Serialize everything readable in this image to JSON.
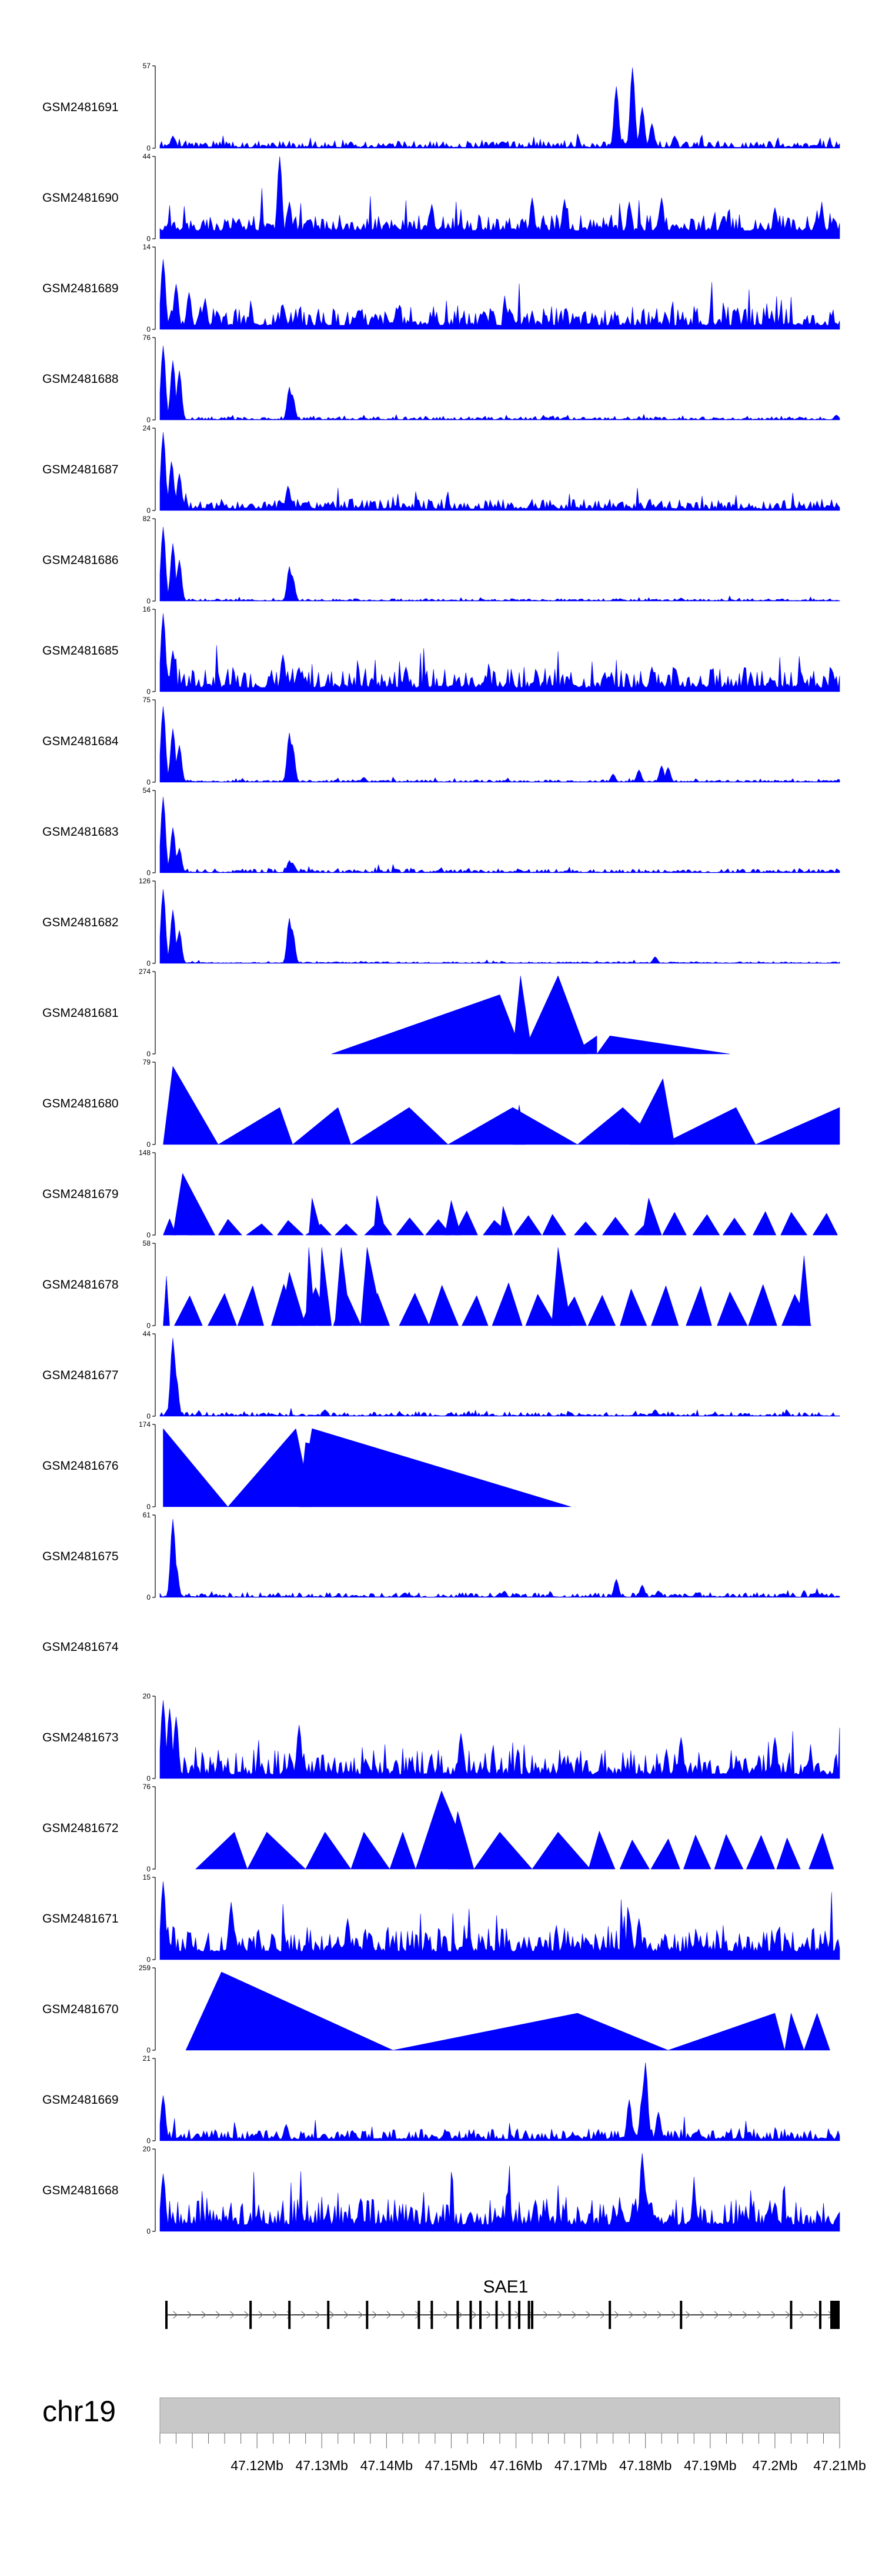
{
  "chart_data": {
    "type": "genome-tracks",
    "colors": {
      "signal": "#0000ff",
      "axis": "#000000",
      "ideogram": "#c8c8c8",
      "label": "#000000"
    },
    "chrom": "chr19",
    "xrange_mb": [
      47.105,
      47.21
    ],
    "xticks": [
      "47.12Mb",
      "47.13Mb",
      "47.14Mb",
      "47.15Mb",
      "47.16Mb",
      "47.17Mb",
      "47.18Mb",
      "47.19Mb",
      "47.2Mb",
      "47.21Mb"
    ],
    "xtick_values": [
      47.12,
      47.13,
      47.14,
      47.15,
      47.16,
      47.17,
      47.18,
      47.19,
      47.2,
      47.21
    ],
    "gene": {
      "name": "SAE1",
      "strand": "+",
      "start_mb": 47.106,
      "end_mb": 47.21,
      "exons_mb": [
        47.106,
        47.119,
        47.125,
        47.131,
        47.137,
        47.145,
        47.147,
        47.151,
        47.153,
        47.1545,
        47.157,
        47.159,
        47.1605,
        47.162,
        47.1625,
        47.1745,
        47.1855,
        47.2025,
        47.207,
        47.2095,
        47.21
      ]
    },
    "series": [
      {
        "name": "GSM2481691",
        "ymax": "57",
        "ymin": "0",
        "style": "peaks",
        "seed": 1,
        "bg_lo": 0.01,
        "bg_hi": 0.09,
        "hump": 0,
        "spikes": [
          [
            47.107,
            0.15
          ],
          [
            47.1755,
            0.75
          ],
          [
            47.178,
            0.98
          ],
          [
            47.1795,
            0.5
          ],
          [
            47.181,
            0.3
          ],
          [
            47.1845,
            0.15
          ],
          [
            47.1345,
            0.08
          ],
          [
            47.1405,
            0.06
          ]
        ]
      },
      {
        "name": "GSM2481690",
        "ymax": "44",
        "ymin": "0",
        "style": "peaks",
        "seed": 2,
        "bg_lo": 0.1,
        "bg_hi": 0.3,
        "hump": 0,
        "spacing": 0.0022,
        "spikes": [
          [
            47.1235,
            1.0
          ],
          [
            47.125,
            0.45
          ],
          [
            47.147,
            0.42
          ],
          [
            47.1625,
            0.5
          ],
          [
            47.1675,
            0.48
          ],
          [
            47.1775,
            0.45
          ],
          [
            47.1825,
            0.5
          ],
          [
            47.2,
            0.38
          ]
        ]
      },
      {
        "name": "GSM2481689",
        "ymax": "14",
        "ymin": "0",
        "style": "peaks",
        "seed": 3,
        "bg_lo": 0.05,
        "bg_hi": 0.28,
        "hump": 0,
        "spikes": [
          [
            47.1055,
            0.85
          ],
          [
            47.1075,
            0.55
          ],
          [
            47.1095,
            0.45
          ],
          [
            47.124,
            0.3
          ],
          [
            47.159,
            0.25
          ]
        ]
      },
      {
        "name": "GSM2481688",
        "ymax": "76",
        "ymin": "0",
        "style": "peaks",
        "seed": 4,
        "bg_lo": 0.005,
        "bg_hi": 0.04,
        "hump": 0,
        "spikes": [
          [
            47.1055,
            0.9
          ],
          [
            47.107,
            0.72
          ],
          [
            47.108,
            0.6
          ],
          [
            47.125,
            0.4
          ],
          [
            47.1255,
            0.3
          ],
          [
            47.2095,
            0.06
          ]
        ]
      },
      {
        "name": "GSM2481687",
        "ymax": "24",
        "ymin": "0",
        "style": "peaks",
        "seed": 5,
        "bg_lo": 0.02,
        "bg_hi": 0.14,
        "hump": 0,
        "spikes": [
          [
            47.1055,
            0.95
          ],
          [
            47.1068,
            0.6
          ],
          [
            47.108,
            0.45
          ],
          [
            47.1248,
            0.3
          ]
        ]
      },
      {
        "name": "GSM2481686",
        "ymax": "82",
        "ymin": "0",
        "style": "peaks",
        "seed": 6,
        "bg_lo": 0.005,
        "bg_hi": 0.03,
        "hump": 0,
        "spikes": [
          [
            47.1055,
            0.9
          ],
          [
            47.107,
            0.7
          ],
          [
            47.108,
            0.5
          ],
          [
            47.125,
            0.42
          ],
          [
            47.1255,
            0.3
          ]
        ]
      },
      {
        "name": "GSM2481685",
        "ymax": "16",
        "ymin": "0",
        "style": "peaks",
        "seed": 7,
        "bg_lo": 0.05,
        "bg_hi": 0.3,
        "hump": 0,
        "spikes": [
          [
            47.1055,
            0.95
          ],
          [
            47.107,
            0.5
          ],
          [
            47.124,
            0.45
          ],
          [
            47.143,
            0.3
          ],
          [
            47.181,
            0.3
          ]
        ]
      },
      {
        "name": "GSM2481684",
        "ymax": "75",
        "ymin": "0",
        "style": "peaks",
        "seed": 8,
        "bg_lo": 0.005,
        "bg_hi": 0.03,
        "hump": 0,
        "spikes": [
          [
            47.1055,
            0.92
          ],
          [
            47.107,
            0.65
          ],
          [
            47.108,
            0.45
          ],
          [
            47.125,
            0.6
          ],
          [
            47.1255,
            0.45
          ],
          [
            47.175,
            0.1
          ],
          [
            47.179,
            0.15
          ],
          [
            47.1825,
            0.2
          ],
          [
            47.1835,
            0.18
          ],
          [
            47.1365,
            0.06
          ]
        ]
      },
      {
        "name": "GSM2481683",
        "ymax": "54",
        "ymin": "0",
        "style": "peaks",
        "seed": 9,
        "bg_lo": 0.005,
        "bg_hi": 0.05,
        "hump": 0,
        "spikes": [
          [
            47.1055,
            0.92
          ],
          [
            47.107,
            0.55
          ],
          [
            47.108,
            0.3
          ],
          [
            47.125,
            0.15
          ],
          [
            47.1255,
            0.12
          ]
        ]
      },
      {
        "name": "GSM2481682",
        "ymax": "126",
        "ymin": "0",
        "style": "peaks",
        "seed": 10,
        "bg_lo": 0.005,
        "bg_hi": 0.02,
        "hump": 0,
        "spikes": [
          [
            47.1055,
            0.9
          ],
          [
            47.107,
            0.65
          ],
          [
            47.108,
            0.4
          ],
          [
            47.125,
            0.55
          ],
          [
            47.1255,
            0.4
          ],
          [
            47.1815,
            0.08
          ]
        ]
      },
      {
        "name": "GSM2481681",
        "ymax": "274",
        "ymin": "0",
        "style": "triangles",
        "tri": [
          [
            47.1315,
            47.1575,
            47.161,
            0.72
          ],
          [
            47.1595,
            47.1607,
            47.1625,
            0.95
          ],
          [
            47.161,
            47.1665,
            47.171,
            0.95
          ],
          [
            47.1625,
            47.164,
            47.1685,
            0.22
          ],
          [
            47.1685,
            47.1725,
            47.1725,
            0.22
          ],
          [
            47.1725,
            47.1745,
            47.193,
            0.22
          ]
        ]
      },
      {
        "name": "GSM2481680",
        "ymax": "79",
        "ymin": "0",
        "style": "triangles",
        "tri": [
          [
            47.1055,
            47.107,
            47.114,
            0.95
          ],
          [
            47.114,
            47.1235,
            47.1255,
            0.45
          ],
          [
            47.1255,
            47.1325,
            47.1345,
            0.45
          ],
          [
            47.1345,
            47.1435,
            47.1495,
            0.45
          ],
          [
            47.1495,
            47.1595,
            47.1695,
            0.45
          ],
          [
            47.1595,
            47.1605,
            47.1615,
            0.48
          ],
          [
            47.1695,
            47.1765,
            47.1825,
            0.45
          ],
          [
            47.1775,
            47.1827,
            47.1845,
            0.8
          ],
          [
            47.1825,
            47.194,
            47.197,
            0.45
          ],
          [
            47.197,
            47.21,
            47.21,
            0.45
          ]
        ]
      },
      {
        "name": "GSM2481679",
        "ymax": "148",
        "ymin": "0",
        "style": "triangles",
        "seed": 13,
        "tri_random": [
          47.109,
          47.21,
          0.12,
          0.3,
          22
        ],
        "tri": [
          [
            47.1055,
            47.1065,
            47.1075,
            0.2
          ],
          [
            47.107,
            47.1085,
            47.1135,
            0.75
          ],
          [
            47.128,
            47.1285,
            47.13,
            0.45
          ],
          [
            47.138,
            47.1385,
            47.14,
            0.48
          ],
          [
            47.149,
            47.15,
            47.1515,
            0.42
          ],
          [
            47.1575,
            47.158,
            47.1595,
            0.35
          ],
          [
            47.1795,
            47.1805,
            47.1825,
            0.45
          ]
        ]
      },
      {
        "name": "GSM2481678",
        "ymax": "58",
        "ymin": "0",
        "style": "triangles",
        "seed": 14,
        "tri_random": [
          47.107,
          47.2055,
          0.35,
          0.55,
          20
        ],
        "tri": [
          [
            47.1055,
            47.106,
            47.1065,
            0.6
          ],
          [
            47.1235,
            47.125,
            47.1275,
            0.65
          ],
          [
            47.1275,
            47.128,
            47.129,
            0.95
          ],
          [
            47.1295,
            47.13,
            47.1315,
            0.95
          ],
          [
            47.132,
            47.133,
            47.1345,
            0.95
          ],
          [
            47.136,
            47.137,
            47.1395,
            0.95
          ],
          [
            47.1655,
            47.1665,
            47.1685,
            0.95
          ],
          [
            47.2035,
            47.2045,
            47.2055,
            0.85
          ]
        ]
      },
      {
        "name": "GSM2481677",
        "ymax": "44",
        "ymin": "0",
        "style": "peaks",
        "seed": 15,
        "bg_lo": 0.005,
        "bg_hi": 0.05,
        "hump": 0,
        "spikes": [
          [
            47.107,
            0.95
          ],
          [
            47.1075,
            0.5
          ],
          [
            47.1305,
            0.08
          ],
          [
            47.1815,
            0.08
          ]
        ]
      },
      {
        "name": "GSM2481676",
        "ymax": "174",
        "ymin": "0",
        "style": "triangles",
        "tri": [
          [
            47.1055,
            47.1055,
            47.1155,
            0.95
          ],
          [
            47.1155,
            47.126,
            47.1285,
            0.95
          ],
          [
            47.1265,
            47.1285,
            47.1685,
            0.95
          ],
          [
            47.1265,
            47.1275,
            47.168,
            0.78
          ]
        ]
      },
      {
        "name": "GSM2481675",
        "ymax": "61",
        "ymin": "0",
        "style": "peaks",
        "seed": 17,
        "bg_lo": 0.005,
        "bg_hi": 0.06,
        "hump": 0,
        "spikes": [
          [
            47.107,
            0.95
          ],
          [
            47.1075,
            0.4
          ],
          [
            47.1755,
            0.22
          ],
          [
            47.1795,
            0.15
          ],
          [
            47.182,
            0.08
          ]
        ]
      },
      {
        "name": "GSM2481674",
        "ymax": "",
        "ymin": "",
        "style": "empty"
      },
      {
        "name": "GSM2481673",
        "ymax": "20",
        "ymin": "0",
        "style": "peaks",
        "seed": 19,
        "bg_lo": 0.05,
        "bg_hi": 0.35,
        "hump": 0,
        "spikes": [
          [
            47.1055,
            0.95
          ],
          [
            47.1065,
            0.85
          ],
          [
            47.1075,
            0.75
          ],
          [
            47.1265,
            0.65
          ],
          [
            47.1515,
            0.55
          ],
          [
            47.1855,
            0.5
          ],
          [
            47.2,
            0.5
          ]
        ]
      },
      {
        "name": "GSM2481672",
        "ymax": "76",
        "ymin": "0",
        "style": "triangles",
        "seed": 20,
        "tri_random": [
          47.171,
          47.21,
          0.35,
          0.5,
          8
        ],
        "tri": [
          [
            47.1105,
            47.1165,
            47.1185,
            0.45
          ],
          [
            47.1185,
            47.1215,
            47.1275,
            0.45
          ],
          [
            47.1275,
            47.1305,
            47.1345,
            0.45
          ],
          [
            47.1345,
            47.1365,
            47.1405,
            0.45
          ],
          [
            47.1405,
            47.1425,
            47.1445,
            0.45
          ],
          [
            47.1445,
            47.1485,
            47.1535,
            0.95
          ],
          [
            47.1495,
            47.151,
            47.1535,
            0.7
          ],
          [
            47.1535,
            47.1575,
            47.1625,
            0.45
          ],
          [
            47.1625,
            47.1665,
            47.1715,
            0.45
          ]
        ]
      },
      {
        "name": "GSM2481671",
        "ymax": "15",
        "ymin": "0",
        "style": "peaks",
        "seed": 21,
        "bg_lo": 0.1,
        "bg_hi": 0.4,
        "hump": 0,
        "spikes": [
          [
            47.1055,
            0.95
          ],
          [
            47.116,
            0.7
          ],
          [
            47.134,
            0.5
          ],
          [
            47.1775,
            0.55
          ],
          [
            47.179,
            0.5
          ]
        ]
      },
      {
        "name": "GSM2481670",
        "ymax": "259",
        "ymin": "0",
        "style": "triangles",
        "tri": [
          [
            47.109,
            47.1145,
            47.141,
            0.95
          ],
          [
            47.141,
            47.1695,
            47.1835,
            0.45
          ],
          [
            47.1835,
            47.2,
            47.2015,
            0.45
          ],
          [
            47.2015,
            47.2025,
            47.2045,
            0.45
          ],
          [
            47.2045,
            47.2065,
            47.2085,
            0.45
          ]
        ]
      },
      {
        "name": "GSM2481669",
        "ymax": "21",
        "ymin": "0",
        "style": "peaks",
        "seed": 23,
        "bg_lo": 0.02,
        "bg_hi": 0.15,
        "hump": 0,
        "spikes": [
          [
            47.1055,
            0.55
          ],
          [
            47.1775,
            0.5
          ],
          [
            47.18,
            0.95
          ],
          [
            47.1795,
            0.55
          ],
          [
            47.182,
            0.35
          ],
          [
            47.1245,
            0.2
          ]
        ]
      },
      {
        "name": "GSM2481668",
        "ymax": "20",
        "ymin": "0",
        "style": "peaks",
        "seed": 24,
        "bg_lo": 0.08,
        "bg_hi": 0.4,
        "hump": 0,
        "spikes": [
          [
            47.1055,
            0.7
          ],
          [
            47.1795,
            0.95
          ],
          [
            47.18,
            0.5
          ]
        ]
      }
    ]
  }
}
